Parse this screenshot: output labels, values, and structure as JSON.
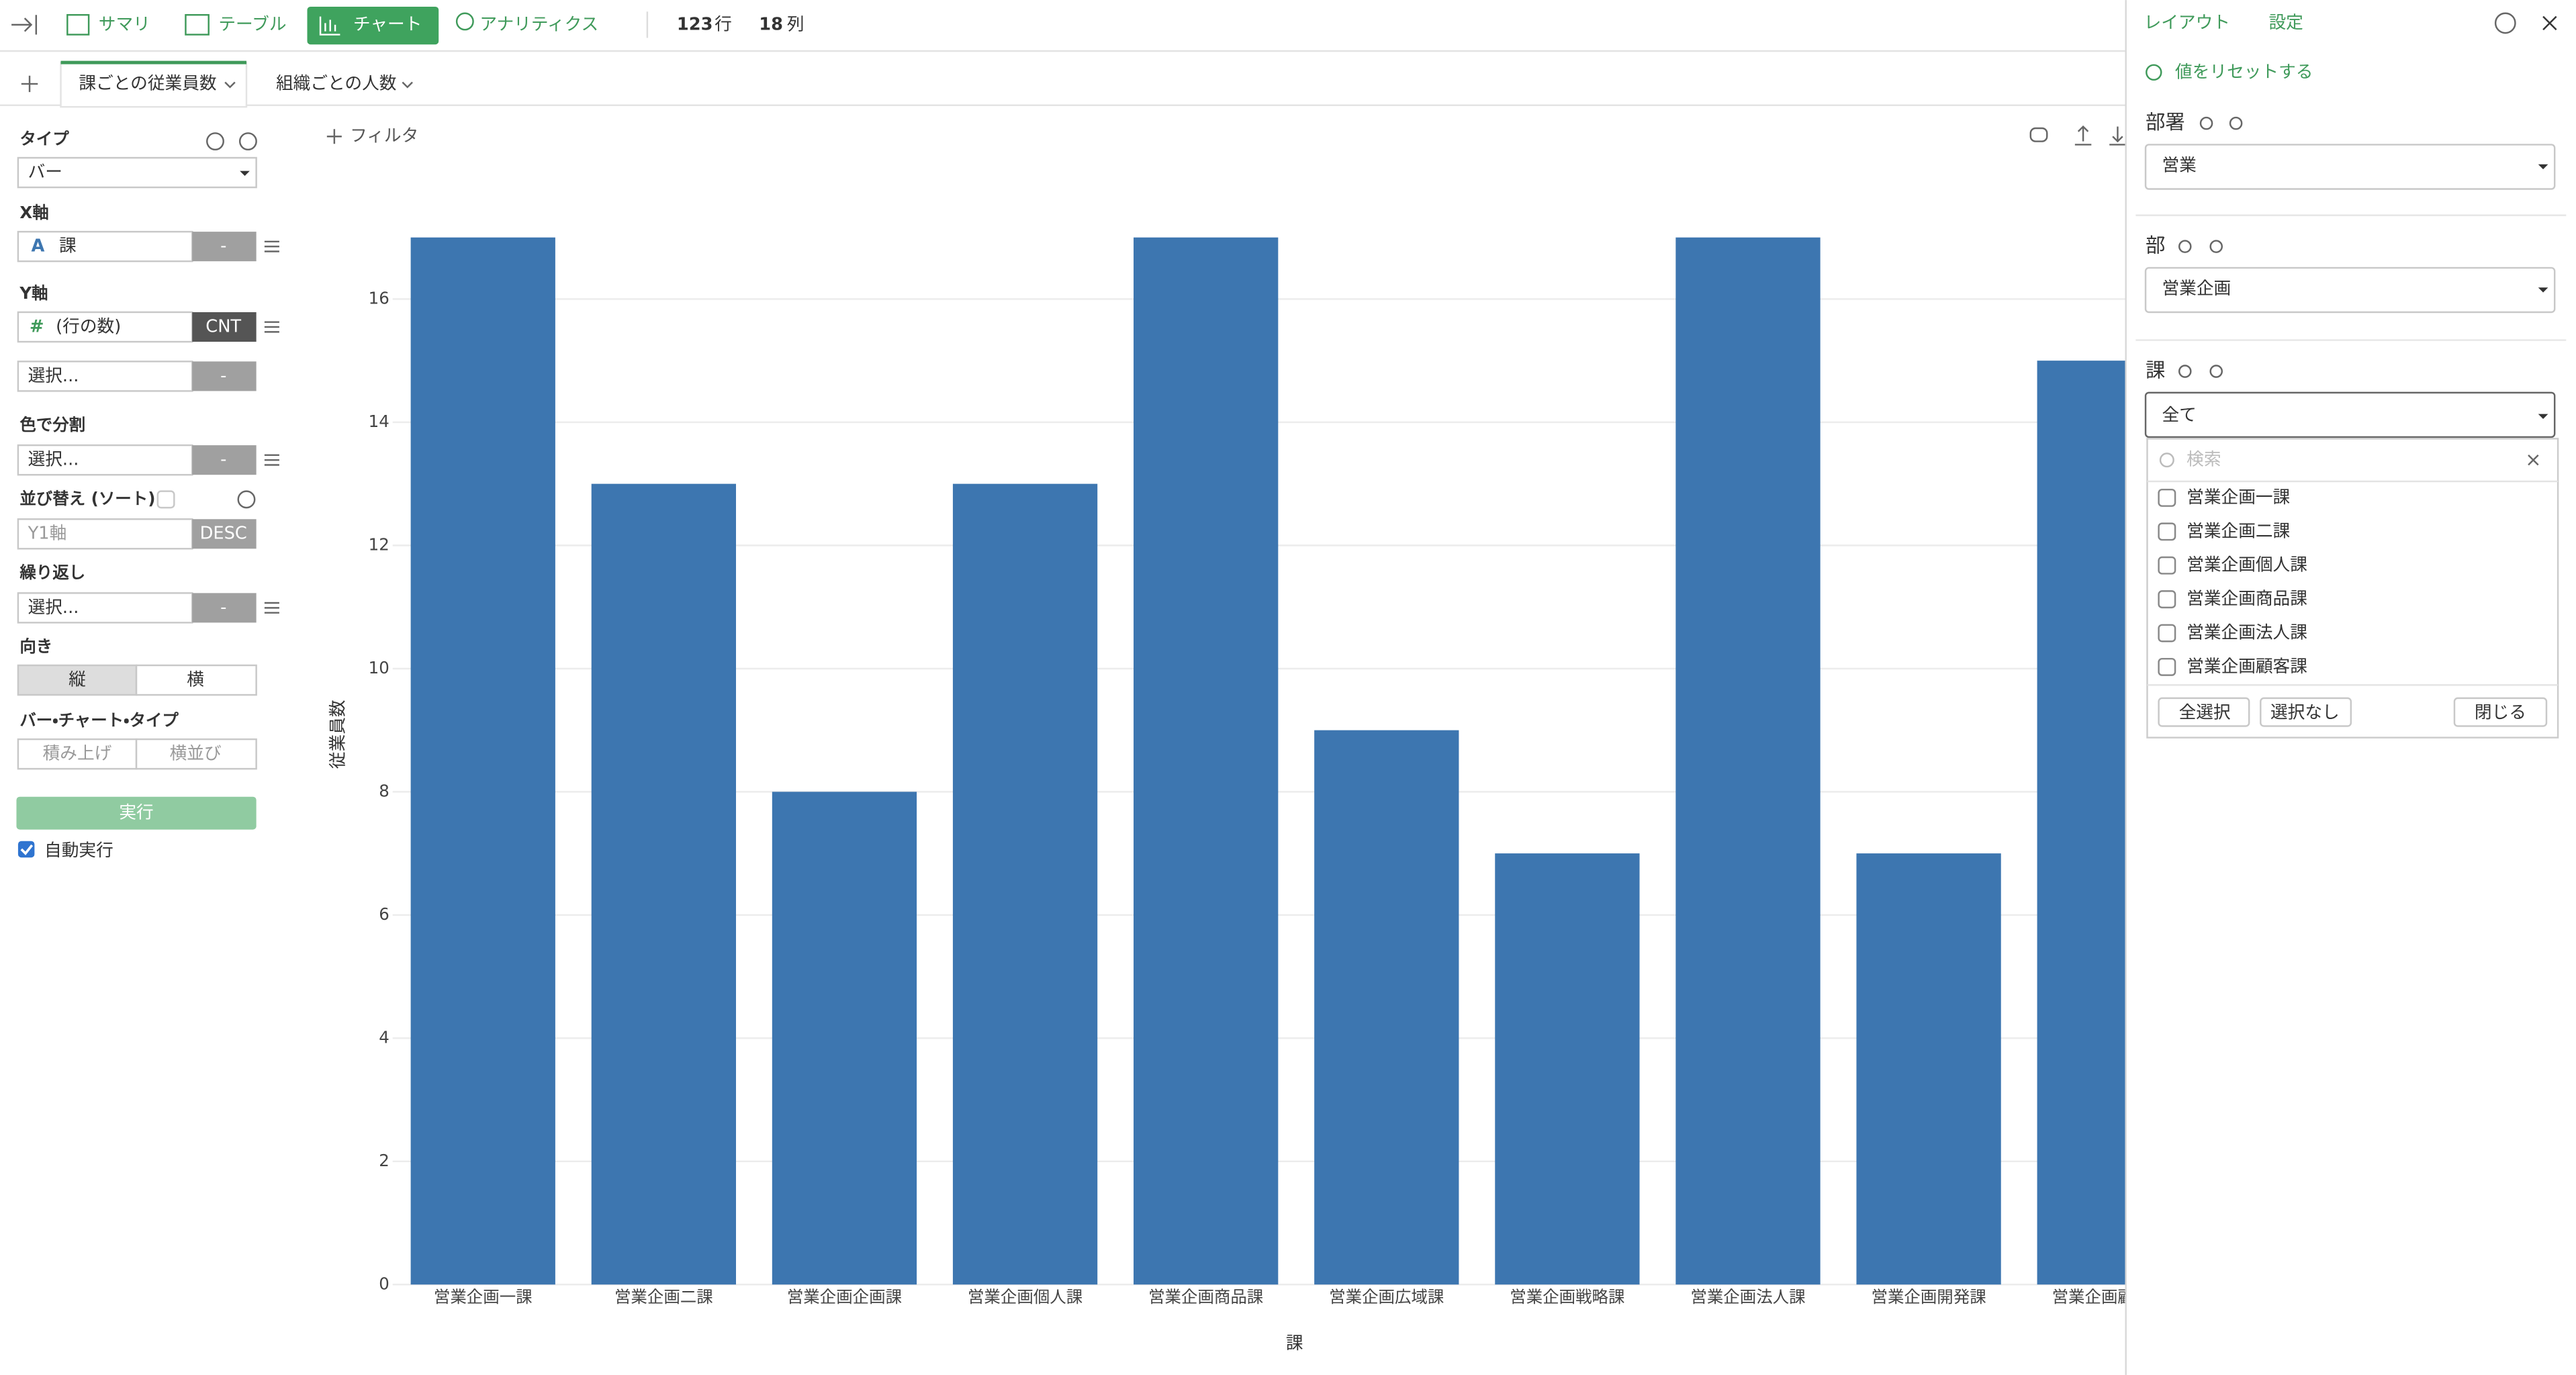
{
  "toolbar": {
    "tabs": [
      "サマリ",
      "テーブル",
      "チャート",
      "アナリティクス"
    ],
    "rows": "123",
    "rows_unit": "行",
    "columns": "18",
    "columns_unit": "列"
  },
  "sheet_tabs": [
    "課ごとの従業員数",
    "組織ごとの人数"
  ],
  "left_panel": {
    "type_label": "タイプ",
    "type_value": "バー",
    "x_axis_label": "X軸",
    "x_axis_value": "課",
    "x_axis_agg": "-",
    "y_axis_label": "Y軸",
    "y_axis_value": "(行の数)",
    "y_axis_agg": "CNT",
    "y2_axis_placeholder": "選択...",
    "y2_axis_agg": "-",
    "color_label": "色で分割",
    "color_placeholder": "選択...",
    "color_agg": "-",
    "sort_label": "並び替え (ソート)",
    "sort_placeholder": "Y1軸",
    "sort_order": "DESC",
    "repeat_label": "繰り返し",
    "repeat_placeholder": "選択...",
    "repeat_agg": "-",
    "orientation_label": "向き",
    "orientation_options": [
      "縦",
      "横"
    ],
    "bar_type_label": "バー・チャート・タイプ",
    "bar_type_options": [
      "積み上げ",
      "横並び"
    ],
    "run_button": "実行",
    "auto_run": "自動実行"
  },
  "filter": "フィルタ",
  "chart_data": {
    "type": "bar",
    "y_label": "従業員数",
    "x_label": "課",
    "categories": [
      "営業企画一課",
      "営業企画二課",
      "営業企画企画課",
      "営業企画個人課",
      "営業企画商品課",
      "営業企画広域課",
      "営業企画戦略課",
      "営業企画法人課",
      "営業企画開発課",
      "営業企画顧客課"
    ],
    "values": [
      17,
      13,
      8,
      13,
      17,
      9,
      7,
      17,
      7,
      15
    ],
    "color": "#3d76b0",
    "ylim": [
      0,
      17
    ],
    "yticks": [
      0,
      2,
      4,
      6,
      8,
      10,
      12,
      14,
      16
    ],
    "grid": true
  },
  "right_panel": {
    "tabs": [
      "レイアウト",
      "設定"
    ],
    "reset": "値をリセットする",
    "filters": [
      {
        "label": "部署",
        "value": "営業"
      },
      {
        "label": "部",
        "value": "営業企画"
      },
      {
        "label": "課",
        "value": "全て"
      }
    ],
    "dropdown": {
      "search_placeholder": "検索",
      "options": [
        "営業企画一課",
        "営業企画二課",
        "営業企画個人課",
        "営業企画商品課",
        "営業企画法人課",
        "営業企画顧客課"
      ],
      "buttons": [
        "全選択",
        "選択なし",
        "閉じる"
      ]
    }
  }
}
